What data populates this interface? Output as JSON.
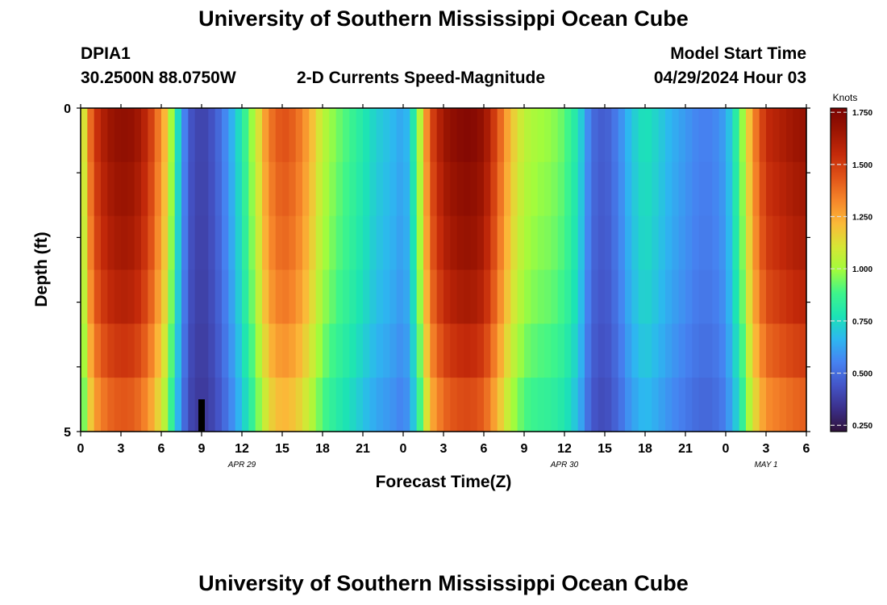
{
  "header": {
    "title": "University of Southern Mississippi Ocean Cube",
    "station": "DPIA1",
    "coords": "30.2500N  88.0750W",
    "subtitle": "2-D Currents Speed-Magnitude",
    "model_label": "Model Start Time",
    "model_time": "04/29/2024 Hour 03",
    "footer_title": "University of Southern Mississippi Ocean Cube"
  },
  "colors": {
    "scale": [
      "#30123b",
      "#3b2f8a",
      "#4455c8",
      "#4682f1",
      "#2db7f0",
      "#1ce3b5",
      "#3ff58a",
      "#a2fc3c",
      "#d6e635",
      "#fbb938",
      "#f6862a",
      "#e05318",
      "#c42a0a",
      "#9c1502",
      "#7a0403"
    ]
  },
  "chart_data": {
    "type": "heatmap",
    "title": "2-D Currents Speed-Magnitude",
    "xlabel": "Forecast Time(Z)",
    "ylabel": "Depth (ft)",
    "x_tick_labels": [
      "0",
      "3",
      "6",
      "9",
      "12",
      "15",
      "18",
      "21",
      "0",
      "3",
      "6",
      "9",
      "12",
      "15",
      "18",
      "21",
      "0",
      "3",
      "6"
    ],
    "date_labels": [
      "APR 29",
      "APR 30",
      "MAY 1"
    ],
    "y_tick_labels": [
      "0",
      "5"
    ],
    "ylim": [
      0,
      5
    ],
    "depth_rows": [
      0,
      1,
      2,
      3,
      4,
      5
    ],
    "colorbar": {
      "title": "Knots",
      "range": [
        0.22,
        1.77
      ],
      "ticks": [
        "1.750",
        "1.500",
        "1.250",
        "1.000",
        "0.750",
        "0.500",
        "0.250"
      ]
    },
    "profile": [
      [
        0,
        0.95
      ],
      [
        0.5,
        1.28
      ],
      [
        1,
        1.5
      ],
      [
        2,
        1.65
      ],
      [
        3,
        1.7
      ],
      [
        4,
        1.68
      ],
      [
        5,
        1.55
      ],
      [
        6,
        1.3
      ],
      [
        6.5,
        1.15
      ],
      [
        7,
        0.85
      ],
      [
        8,
        0.45
      ],
      [
        9,
        0.38
      ],
      [
        10,
        0.45
      ],
      [
        11,
        0.6
      ],
      [
        12,
        0.8
      ],
      [
        13,
        1.05
      ],
      [
        14,
        1.35
      ],
      [
        15,
        1.45
      ],
      [
        16,
        1.4
      ],
      [
        17,
        1.25
      ],
      [
        18,
        1.05
      ],
      [
        19,
        0.95
      ],
      [
        20,
        0.88
      ],
      [
        21,
        0.8
      ],
      [
        22,
        0.72
      ],
      [
        23,
        0.68
      ],
      [
        24,
        0.62
      ],
      [
        24.5,
        0.7
      ],
      [
        25,
        0.9
      ],
      [
        26,
        1.45
      ],
      [
        27,
        1.65
      ],
      [
        28,
        1.72
      ],
      [
        29,
        1.74
      ],
      [
        30,
        1.68
      ],
      [
        31,
        1.45
      ],
      [
        32,
        1.2
      ],
      [
        33,
        1.05
      ],
      [
        34,
        1.0
      ],
      [
        35,
        0.98
      ],
      [
        36,
        0.92
      ],
      [
        37,
        0.78
      ],
      [
        38,
        0.5
      ],
      [
        39,
        0.45
      ],
      [
        40,
        0.55
      ],
      [
        41,
        0.7
      ],
      [
        42,
        0.78
      ],
      [
        43,
        0.72
      ],
      [
        44,
        0.65
      ],
      [
        45,
        0.6
      ],
      [
        46,
        0.55
      ],
      [
        47,
        0.55
      ],
      [
        48,
        0.62
      ],
      [
        49,
        0.88
      ],
      [
        50,
        1.3
      ],
      [
        51,
        1.55
      ],
      [
        52,
        1.6
      ],
      [
        53,
        1.65
      ],
      [
        54,
        1.68
      ]
    ],
    "row_factors": [
      1.0,
      0.98,
      0.96,
      0.93,
      0.88,
      0.82
    ],
    "bottom_outline_band": {
      "hour": 9,
      "label": "dark band near bottom at hour 9"
    }
  }
}
